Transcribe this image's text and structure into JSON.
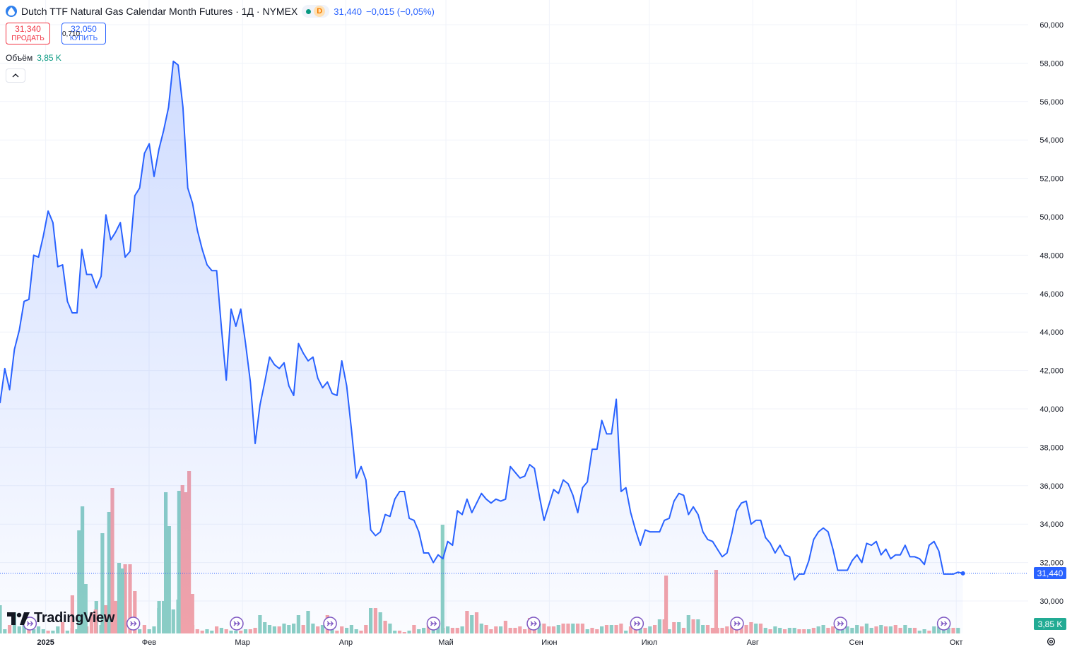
{
  "header": {
    "title": "Dutch TTF Natural Gas Calendar Month Futures · 1Д · NYMEX",
    "status_badge": "D",
    "last": "31,440",
    "change": "−0,015 (−0,05%)"
  },
  "trade": {
    "sell_price": "31,340",
    "sell_label": "ПРОДАТЬ",
    "spread": "0,710",
    "buy_price": "32,050",
    "buy_label": "КУПИТЬ"
  },
  "volume_legend": {
    "label": "Объём",
    "value": "3,85 K"
  },
  "price_tag": "31,440",
  "volume_tag": "3,85 K",
  "logo": {
    "text": "TradingView"
  },
  "colors": {
    "line": "#2962ff",
    "up_volume": "#8ccfc4",
    "down_volume": "#f4a3a8",
    "grid": "#f0f3fa",
    "last_price_tag": "#2962ff",
    "volume_tag": "#22ab94"
  },
  "icons": {
    "symbol": "drop-icon",
    "market_status": "green-dot-icon",
    "collapse": "chevron-up-icon",
    "events": "dividend-arrow-icon",
    "settings": "gear-icon"
  },
  "chart_data": {
    "type": "area",
    "x_start": "2024-12-20",
    "x_tick_labels": [
      {
        "label": "2025",
        "date": "2025-01-01"
      },
      {
        "label": "Фев",
        "date": "2025-02-01"
      },
      {
        "label": "Мар",
        "date": "2025-03-01"
      },
      {
        "label": "Апр",
        "date": "2025-04-01"
      },
      {
        "label": "Май",
        "date": "2025-05-01"
      },
      {
        "label": "Июн",
        "date": "2025-06-01"
      },
      {
        "label": "Июл",
        "date": "2025-07-01"
      },
      {
        "label": "Авг",
        "date": "2025-08-01"
      },
      {
        "label": "Сен",
        "date": "2025-09-01"
      },
      {
        "label": "Окт",
        "date": "2025-10-01"
      }
    ],
    "y_tick_labels": [
      "60,000",
      "58,000",
      "56,000",
      "54,000",
      "52,000",
      "50,000",
      "48,000",
      "46,000",
      "44,000",
      "42,000",
      "40,000",
      "38,000",
      "36,000",
      "34,000",
      "32,000",
      "30,000"
    ],
    "ylim": [
      29,
      60.5
    ],
    "grid": true,
    "last_value": 31.44,
    "price_series": [
      40.3,
      42.1,
      41.0,
      43.1,
      44.1,
      45.6,
      45.7,
      48.0,
      47.9,
      49.0,
      50.3,
      49.7,
      47.4,
      47.5,
      45.6,
      45.0,
      45.0,
      48.3,
      47.0,
      47.0,
      46.3,
      46.9,
      50.1,
      48.8,
      49.2,
      49.7,
      47.9,
      48.2,
      51.1,
      51.5,
      53.3,
      53.8,
      52.1,
      53.5,
      54.5,
      55.7,
      58.1,
      57.9,
      55.7,
      51.5,
      50.7,
      49.3,
      48.3,
      47.5,
      47.2,
      47.2,
      44.2,
      41.5,
      45.2,
      44.3,
      45.2,
      43.4,
      41.4,
      38.2,
      40.2,
      41.4,
      42.7,
      42.3,
      42.1,
      42.4,
      41.2,
      40.7,
      43.4,
      42.9,
      42.5,
      42.7,
      41.6,
      41.1,
      41.4,
      40.8,
      40.7,
      42.5,
      41.2,
      38.9,
      36.4,
      37.0,
      36.3,
      33.7,
      33.4,
      33.6,
      34.5,
      34.4,
      35.3,
      35.7,
      35.7,
      34.3,
      34.2,
      33.6,
      32.5,
      32.5,
      32.0,
      32.4,
      32.2,
      33.1,
      32.9,
      34.7,
      34.5,
      35.3,
      34.6,
      35.1,
      35.6,
      35.3,
      35.1,
      35.3,
      35.2,
      35.3,
      37.0,
      36.7,
      36.4,
      36.5,
      37.1,
      36.9,
      35.5,
      34.2,
      35.0,
      35.8,
      35.6,
      36.3,
      36.1,
      35.5,
      34.6,
      35.9,
      36.2,
      37.9,
      37.9,
      39.4,
      38.7,
      38.7,
      40.5,
      35.7,
      35.9,
      34.6,
      33.7,
      32.9,
      33.7,
      33.6,
      33.6,
      33.6,
      34.2,
      34.3,
      35.2,
      35.6,
      35.5,
      34.5,
      34.9,
      34.5,
      33.6,
      33.2,
      33.1,
      32.7,
      32.3,
      32.5,
      33.5,
      34.7,
      35.1,
      35.2,
      34.0,
      34.2,
      34.2,
      33.3,
      33.0,
      32.5,
      32.9,
      32.4,
      32.3,
      31.1,
      31.4,
      31.4,
      32.1,
      33.2,
      33.6,
      33.8,
      33.6,
      32.7,
      31.6,
      31.6,
      31.6,
      32.1,
      32.4,
      32.0,
      33.0,
      32.9,
      33.1,
      32.4,
      32.7,
      32.2,
      32.4,
      32.4,
      32.9,
      32.3,
      32.3,
      32.2,
      31.9,
      32.9,
      33.1,
      32.6,
      31.4,
      31.4,
      31.4,
      31.5,
      31.44
    ],
    "volume_series": [
      {
        "name": "Объём",
        "values": [
          2.0,
          0.3,
          0.6,
          1.5,
          0.5,
          0.8,
          0.4,
          0.3,
          0.5,
          0.3,
          0.2,
          0.2,
          0.5,
          0.8,
          0.2,
          0.4,
          0.3,
          0.2,
          0.5,
          1.5,
          2.3,
          0.6,
          2.0,
          1.9,
          2.3,
          2.8,
          4.9,
          4.9,
          3.0,
          0.3,
          0.6,
          0.3,
          0.5,
          1.8,
          2.3,
          2.9,
          1.7,
          2.4,
          3.7,
          0.7,
          0.6,
          0.3,
          0.2,
          0.3,
          0.2,
          0.5,
          0.4,
          0.3,
          0.2,
          0.2,
          0.2,
          0.3,
          0.3,
          0.4,
          1.3,
          0.8,
          0.6,
          0.5,
          0.5,
          0.7,
          0.6,
          0.7,
          1.3,
          0.6,
          1.6,
          0.7,
          0.5,
          0.6,
          1.3,
          0.3,
          0.2,
          0.5,
          0.4,
          0.6,
          0.3,
          0.2,
          0.6,
          1.8,
          1.8,
          1.5,
          0.9,
          0.7,
          0.2,
          0.2,
          0.1,
          0.2,
          0.6,
          0.3,
          0.4,
          0.6,
          0.6,
          0.6,
          0.4,
          0.5,
          0.4,
          0.4,
          0.5,
          1.6,
          1.3,
          1.5,
          0.7,
          0.6,
          0.3,
          0.5,
          0.5,
          0.9,
          0.4,
          0.4,
          0.5,
          0.3,
          1.1,
          0.4,
          0.7,
          0.7,
          0.5,
          0.5,
          0.6,
          0.7,
          0.7,
          0.7,
          0.7,
          0.7,
          0.3,
          0.4,
          0.3,
          0.5,
          0.6,
          0.6,
          0.6,
          0.7,
          0.2,
          0.5,
          0.4,
          0.4,
          0.4,
          0.5,
          0.6,
          1.0,
          1.0,
          0.3,
          0.8,
          0.8,
          0.4,
          1.3,
          1.0,
          1.0,
          0.6,
          0.6,
          0.4,
          0.4,
          0.4,
          0.5,
          0.6,
          0.5,
          0.5,
          0.6,
          0.8,
          0.7,
          0.7,
          0.4,
          0.3,
          0.5,
          0.4,
          0.3,
          0.4,
          0.4,
          0.3,
          0.3,
          0.3,
          0.4,
          0.5,
          0.6,
          0.4,
          0.5,
          0.4,
          0.4,
          0.5,
          0.4,
          0.6,
          0.5,
          0.7,
          0.4,
          0.5,
          0.6,
          0.5,
          0.5,
          0.6,
          0.4,
          0.6,
          0.4,
          0.4,
          0.2,
          0.3,
          0.2,
          0.5,
          0.5,
          0.6,
          0.4,
          0.4,
          0.4
        ],
        "direction_up": [
          true,
          true,
          false,
          true,
          true,
          true,
          false,
          true,
          true,
          true,
          false,
          true,
          true,
          false,
          true,
          false,
          true,
          false,
          false,
          false,
          true,
          true,
          false,
          true,
          false,
          false,
          false,
          false,
          false,
          true,
          false,
          true,
          true,
          true,
          true,
          true,
          true,
          true,
          true,
          true,
          false,
          false,
          false,
          true,
          true,
          false,
          true,
          false,
          true,
          true,
          false,
          true,
          false,
          false,
          true,
          true,
          true,
          true,
          false,
          true,
          true,
          true,
          true,
          false,
          true,
          true,
          false,
          true,
          false,
          true,
          false,
          false,
          true,
          true,
          true,
          false,
          false,
          true,
          false,
          true,
          false,
          true,
          true,
          false,
          false,
          true,
          false,
          true,
          true,
          false,
          true,
          true,
          false,
          true,
          false,
          false,
          true,
          false,
          true,
          false,
          true,
          false,
          false,
          false,
          true,
          false,
          false,
          false,
          false,
          false,
          false,
          false,
          true,
          false,
          false,
          false,
          true,
          false,
          false,
          true,
          false,
          false,
          true,
          false,
          false,
          true,
          false,
          true,
          false,
          false,
          true,
          false,
          false,
          true,
          false,
          true,
          false,
          true,
          false,
          true,
          false,
          true,
          false,
          true,
          false,
          true,
          true,
          false,
          false,
          false,
          false,
          false,
          false,
          false,
          false,
          false,
          false,
          true,
          false,
          true,
          false,
          true,
          true,
          false,
          true,
          true,
          false,
          false,
          true,
          false,
          true,
          true,
          false,
          false,
          true,
          true,
          true,
          true,
          true,
          false,
          true,
          true,
          false,
          true,
          false,
          true,
          false,
          false,
          true,
          true,
          false,
          true,
          true,
          false,
          true,
          true,
          true,
          true,
          false,
          true,
          false,
          false,
          true,
          true
        ]
      },
      {
        "name": "big-bars",
        "bars": [
          {
            "date": "2025-01-09",
            "value": 2.7,
            "up": false
          },
          {
            "date": "2025-01-11",
            "value": 7.3,
            "up": true
          },
          {
            "date": "2025-01-12",
            "value": 9.0,
            "up": true
          },
          {
            "date": "2025-01-13",
            "value": 3.5,
            "up": true
          },
          {
            "date": "2025-01-16",
            "value": 1.7,
            "up": false
          },
          {
            "date": "2025-01-18",
            "value": 7.1,
            "up": true
          },
          {
            "date": "2025-01-20",
            "value": 8.6,
            "up": true
          },
          {
            "date": "2025-01-21",
            "value": 10.3,
            "up": false
          },
          {
            "date": "2025-01-23",
            "value": 5.0,
            "up": true
          },
          {
            "date": "2025-01-24",
            "value": 4.6,
            "up": true
          },
          {
            "date": "2025-02-04",
            "value": 2.3,
            "up": true
          },
          {
            "date": "2025-02-06",
            "value": 10.0,
            "up": true
          },
          {
            "date": "2025-02-07",
            "value": 7.6,
            "up": true
          },
          {
            "date": "2025-02-10",
            "value": 10.1,
            "up": true
          },
          {
            "date": "2025-02-11",
            "value": 10.5,
            "up": false
          },
          {
            "date": "2025-02-12",
            "value": 10.0,
            "up": false
          },
          {
            "date": "2025-02-13",
            "value": 11.5,
            "up": false
          },
          {
            "date": "2025-02-14",
            "value": 2.8,
            "up": false
          },
          {
            "date": "2025-04-30",
            "value": 7.7,
            "up": true
          },
          {
            "date": "2025-07-06",
            "value": 4.1,
            "up": false
          },
          {
            "date": "2025-07-21",
            "value": 4.5,
            "up": false
          }
        ]
      }
    ],
    "event_marker_dates": [
      "2024-12-26",
      "2025-01-26",
      "2025-02-26",
      "2025-03-26",
      "2025-04-26",
      "2025-05-26",
      "2025-06-26",
      "2025-07-26",
      "2025-08-26",
      "2025-09-26"
    ]
  }
}
